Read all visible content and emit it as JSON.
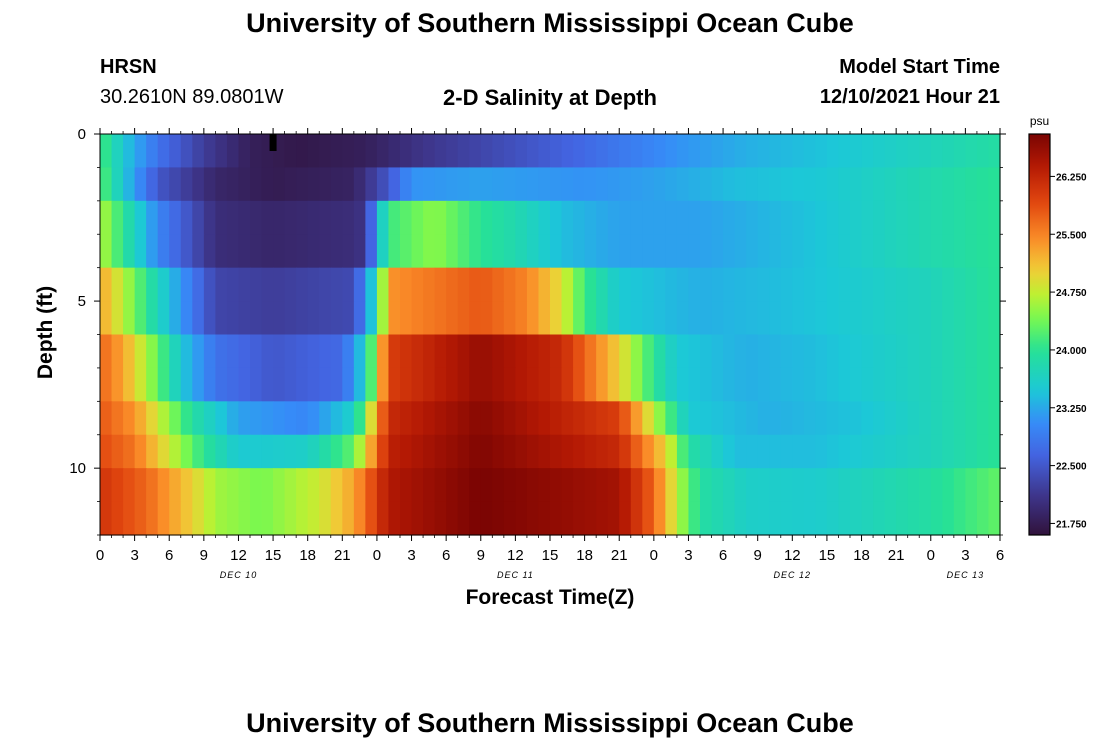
{
  "page": {
    "title": "University of Southern Mississippi Ocean Cube",
    "footer_title": "University of Southern Mississippi Ocean Cube",
    "station": "HRSN",
    "coordinates": "30.2610N  89.0801W",
    "subtitle": "2-D Salinity at Depth",
    "model_start_label": "Model Start Time",
    "model_start_value": "12/10/2021 Hour 21"
  },
  "chart_data": {
    "type": "heatmap",
    "title": "2-D Salinity at Depth",
    "xlabel": "Forecast Time(Z)",
    "ylabel": "Depth (ft)",
    "x_unit": "hours",
    "xlim": [
      0,
      78
    ],
    "ylim": [
      0,
      12
    ],
    "x_tick_values": [
      0,
      3,
      6,
      9,
      12,
      15,
      18,
      21,
      24,
      27,
      30,
      33,
      36,
      39,
      42,
      45,
      48,
      51,
      54,
      57,
      60,
      63,
      66,
      69,
      72,
      75,
      78
    ],
    "x_tick_labels": [
      "0",
      "3",
      "6",
      "9",
      "12",
      "15",
      "18",
      "21",
      "0",
      "3",
      "6",
      "9",
      "12",
      "15",
      "18",
      "21",
      "0",
      "3",
      "6",
      "9",
      "12",
      "15",
      "18",
      "21",
      "0",
      "3",
      "6"
    ],
    "day_labels": [
      {
        "text": "DEC 10",
        "hour": 12
      },
      {
        "text": "DEC 11",
        "hour": 36
      },
      {
        "text": "DEC 12",
        "hour": 60
      },
      {
        "text": "DEC 13",
        "hour": 75
      }
    ],
    "y_tick_values": [
      0,
      5,
      10
    ],
    "y_tick_labels": [
      "0",
      "5",
      "10"
    ],
    "colorbar": {
      "unit": "psu",
      "vmin": 21.6,
      "vmax": 26.8,
      "tick_values": [
        21.75,
        22.5,
        23.25,
        24.0,
        24.75,
        25.5,
        26.25
      ],
      "tick_labels": [
        "21.750",
        "22.500",
        "23.250",
        "24.000",
        "24.750",
        "25.500",
        "26.250"
      ]
    },
    "grid": {
      "layers": 12,
      "layer_depth_ft": 1,
      "time_step_hours": 1,
      "salinity_psu": {
        "model": "estimated piecewise-linear time profiles read from the figure colors, one key profile per group of layers",
        "layer_profile_index": [
          0,
          1,
          2,
          2,
          3,
          3,
          4,
          4,
          5,
          6,
          7,
          7
        ],
        "profiles": [
          [
            [
              0,
              24.2
            ],
            [
              2,
              23.5
            ],
            [
              5,
              22.8
            ],
            [
              9,
              22.2
            ],
            [
              13,
              21.8
            ],
            [
              17,
              21.7
            ],
            [
              23,
              21.8
            ],
            [
              28,
              22.1
            ],
            [
              33,
              22.3
            ],
            [
              40,
              22.6
            ],
            [
              46,
              22.9
            ],
            [
              50,
              23.1
            ],
            [
              56,
              23.3
            ],
            [
              63,
              23.45
            ],
            [
              72,
              23.7
            ],
            [
              78,
              23.9
            ]
          ],
          [
            [
              0,
              24.3
            ],
            [
              2,
              23.5
            ],
            [
              5,
              22.5
            ],
            [
              10,
              21.9
            ],
            [
              15,
              21.75
            ],
            [
              22,
              21.85
            ],
            [
              25,
              22.5
            ],
            [
              27,
              23.1
            ],
            [
              33,
              23.2
            ],
            [
              42,
              23.1
            ],
            [
              48,
              23.2
            ],
            [
              55,
              23.4
            ],
            [
              63,
              23.5
            ],
            [
              72,
              23.8
            ],
            [
              78,
              24.0
            ]
          ],
          [
            [
              0,
              24.7
            ],
            [
              2,
              24.0
            ],
            [
              5,
              23.0
            ],
            [
              10,
              22.0
            ],
            [
              15,
              21.9
            ],
            [
              22,
              22.0
            ],
            [
              23,
              22.1
            ],
            [
              24,
              23.2
            ],
            [
              25,
              24.1
            ],
            [
              29,
              24.5
            ],
            [
              33,
              24.0
            ],
            [
              36,
              23.8
            ],
            [
              40,
              23.4
            ],
            [
              45,
              23.2
            ],
            [
              52,
              23.2
            ],
            [
              62,
              23.45
            ],
            [
              72,
              23.8
            ],
            [
              78,
              24.0
            ]
          ],
          [
            [
              0,
              25.3
            ],
            [
              2,
              24.7
            ],
            [
              5,
              23.7
            ],
            [
              10,
              22.3
            ],
            [
              15,
              22.2
            ],
            [
              22,
              22.35
            ],
            [
              24,
              23.8
            ],
            [
              25,
              25.4
            ],
            [
              33,
              25.8
            ],
            [
              37,
              25.5
            ],
            [
              40,
              24.9
            ],
            [
              42,
              24.1
            ],
            [
              45,
              23.5
            ],
            [
              52,
              23.3
            ],
            [
              62,
              23.45
            ],
            [
              72,
              23.7
            ],
            [
              78,
              24.0
            ]
          ],
          [
            [
              0,
              25.7
            ],
            [
              2,
              25.3
            ],
            [
              5,
              24.3
            ],
            [
              7,
              23.5
            ],
            [
              10,
              22.8
            ],
            [
              15,
              22.5
            ],
            [
              21,
              22.7
            ],
            [
              23,
              23.6
            ],
            [
              25,
              26.0
            ],
            [
              33,
              26.6
            ],
            [
              40,
              26.2
            ],
            [
              45,
              25.0
            ],
            [
              48,
              24.0
            ],
            [
              50,
              23.5
            ],
            [
              56,
              23.3
            ],
            [
              62,
              23.4
            ],
            [
              72,
              23.7
            ],
            [
              78,
              24.0
            ]
          ],
          [
            [
              0,
              25.8
            ],
            [
              3,
              25.4
            ],
            [
              5,
              24.8
            ],
            [
              8,
              23.9
            ],
            [
              12,
              23.2
            ],
            [
              18,
              23.0
            ],
            [
              22,
              23.6
            ],
            [
              25,
              26.2
            ],
            [
              33,
              26.7
            ],
            [
              45,
              26.0
            ],
            [
              48,
              24.7
            ],
            [
              51,
              23.5
            ],
            [
              58,
              23.3
            ],
            [
              66,
              23.45
            ],
            [
              72,
              23.7
            ],
            [
              78,
              24.0
            ]
          ],
          [
            [
              0,
              25.9
            ],
            [
              3,
              25.6
            ],
            [
              6,
              24.8
            ],
            [
              9,
              24.0
            ],
            [
              12,
              23.5
            ],
            [
              18,
              23.6
            ],
            [
              22,
              24.3
            ],
            [
              25,
              26.3
            ],
            [
              33,
              26.75
            ],
            [
              45,
              26.2
            ],
            [
              49,
              25.0
            ],
            [
              51,
              23.9
            ],
            [
              55,
              23.4
            ],
            [
              62,
              23.4
            ],
            [
              72,
              23.7
            ],
            [
              78,
              24.0
            ]
          ],
          [
            [
              0,
              26.1
            ],
            [
              4,
              25.7
            ],
            [
              8,
              25.0
            ],
            [
              10,
              24.6
            ],
            [
              14,
              24.4
            ],
            [
              19,
              24.8
            ],
            [
              22,
              25.3
            ],
            [
              25,
              26.4
            ],
            [
              33,
              26.8
            ],
            [
              45,
              26.5
            ],
            [
              48,
              25.7
            ],
            [
              50,
              24.7
            ],
            [
              52,
              23.9
            ],
            [
              56,
              23.6
            ],
            [
              62,
              23.55
            ],
            [
              72,
              23.9
            ],
            [
              78,
              24.3
            ]
          ]
        ]
      }
    },
    "marker": {
      "hour": 15,
      "depth_ft": 0
    }
  }
}
